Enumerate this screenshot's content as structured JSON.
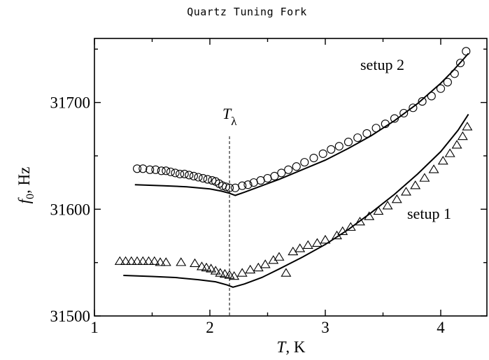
{
  "chart_data": {
    "type": "scatter",
    "title": "Quartz Tuning Fork",
    "xlabel": "T, K",
    "ylabel": "f0, Hz",
    "xlim": [
      1,
      4.4
    ],
    "ylim": [
      31500,
      31760
    ],
    "xticks": [
      "1",
      "2",
      "3",
      "4"
    ],
    "yticks": [
      "31500",
      "31600",
      "31700"
    ],
    "grid": false,
    "legend": "none",
    "annotations": {
      "t_lambda_x": 2.17,
      "t_lambda_label": "T",
      "t_lambda_subscript": "λ",
      "setup2_label": "setup 2",
      "setup1_label": "setup 1"
    },
    "series": [
      {
        "name": "setup 2",
        "marker": "circle",
        "points": [
          [
            1.37,
            31638
          ],
          [
            1.42,
            31638
          ],
          [
            1.48,
            31637
          ],
          [
            1.53,
            31637
          ],
          [
            1.58,
            31636
          ],
          [
            1.62,
            31636
          ],
          [
            1.66,
            31635
          ],
          [
            1.7,
            31634
          ],
          [
            1.74,
            31633
          ],
          [
            1.78,
            31633
          ],
          [
            1.82,
            31632
          ],
          [
            1.86,
            31631
          ],
          [
            1.9,
            31630
          ],
          [
            1.94,
            31629
          ],
          [
            1.98,
            31628
          ],
          [
            2.02,
            31627
          ],
          [
            2.05,
            31626
          ],
          [
            2.08,
            31624
          ],
          [
            2.11,
            31622
          ],
          [
            2.14,
            31621
          ],
          [
            2.17,
            31620
          ],
          [
            2.22,
            31620
          ],
          [
            2.28,
            31622
          ],
          [
            2.33,
            31623
          ],
          [
            2.38,
            31625
          ],
          [
            2.44,
            31627
          ],
          [
            2.5,
            31629
          ],
          [
            2.56,
            31631
          ],
          [
            2.62,
            31634
          ],
          [
            2.68,
            31637
          ],
          [
            2.75,
            31640
          ],
          [
            2.82,
            31644
          ],
          [
            2.9,
            31648
          ],
          [
            2.98,
            31652
          ],
          [
            3.05,
            31656
          ],
          [
            3.12,
            31659
          ],
          [
            3.2,
            31663
          ],
          [
            3.28,
            31667
          ],
          [
            3.36,
            31671
          ],
          [
            3.44,
            31676
          ],
          [
            3.52,
            31680
          ],
          [
            3.6,
            31685
          ],
          [
            3.68,
            31690
          ],
          [
            3.76,
            31695
          ],
          [
            3.84,
            31701
          ],
          [
            3.92,
            31706
          ],
          [
            4.0,
            31713
          ],
          [
            4.06,
            31719
          ],
          [
            4.12,
            31727
          ],
          [
            4.17,
            31737
          ],
          [
            4.22,
            31748
          ]
        ]
      },
      {
        "name": "setup 1",
        "marker": "triangle",
        "points": [
          [
            1.22,
            31551
          ],
          [
            1.27,
            31551
          ],
          [
            1.32,
            31551
          ],
          [
            1.37,
            31551
          ],
          [
            1.42,
            31551
          ],
          [
            1.47,
            31551
          ],
          [
            1.52,
            31551
          ],
          [
            1.57,
            31550
          ],
          [
            1.62,
            31550
          ],
          [
            1.75,
            31550
          ],
          [
            1.87,
            31549
          ],
          [
            1.93,
            31546
          ],
          [
            1.97,
            31545
          ],
          [
            2.01,
            31544
          ],
          [
            2.05,
            31542
          ],
          [
            2.09,
            31540
          ],
          [
            2.13,
            31539
          ],
          [
            2.17,
            31538
          ],
          [
            2.21,
            31537
          ],
          [
            2.28,
            31540
          ],
          [
            2.35,
            31543
          ],
          [
            2.42,
            31545
          ],
          [
            2.48,
            31548
          ],
          [
            2.55,
            31552
          ],
          [
            2.6,
            31555
          ],
          [
            2.66,
            31540
          ],
          [
            2.72,
            31560
          ],
          [
            2.78,
            31563
          ],
          [
            2.85,
            31566
          ],
          [
            2.93,
            31568
          ],
          [
            3.0,
            31571
          ],
          [
            3.1,
            31575
          ],
          [
            3.15,
            31579
          ],
          [
            3.22,
            31583
          ],
          [
            3.3,
            31588
          ],
          [
            3.38,
            31593
          ],
          [
            3.46,
            31598
          ],
          [
            3.54,
            31603
          ],
          [
            3.62,
            31609
          ],
          [
            3.7,
            31616
          ],
          [
            3.78,
            31622
          ],
          [
            3.86,
            31629
          ],
          [
            3.94,
            31637
          ],
          [
            4.02,
            31645
          ],
          [
            4.08,
            31652
          ],
          [
            4.14,
            31660
          ],
          [
            4.19,
            31668
          ],
          [
            4.23,
            31677
          ]
        ]
      },
      {
        "name": "",
        "type": "line",
        "points": [
          [
            1.35,
            31623
          ],
          [
            1.6,
            31622
          ],
          [
            1.8,
            31621
          ],
          [
            2.0,
            31619
          ],
          [
            2.1,
            31617
          ],
          [
            2.17,
            31615
          ],
          [
            2.22,
            31613
          ],
          [
            2.3,
            31616
          ],
          [
            2.45,
            31622
          ],
          [
            2.6,
            31628
          ],
          [
            2.8,
            31637
          ],
          [
            3.0,
            31646
          ],
          [
            3.2,
            31657
          ],
          [
            3.4,
            31669
          ],
          [
            3.6,
            31683
          ],
          [
            3.8,
            31699
          ],
          [
            4.0,
            31718
          ],
          [
            4.1,
            31729
          ],
          [
            4.2,
            31741
          ],
          [
            4.24,
            31746
          ]
        ]
      },
      {
        "name": "",
        "type": "line",
        "points": [
          [
            1.25,
            31538
          ],
          [
            1.5,
            31537
          ],
          [
            1.7,
            31536
          ],
          [
            1.9,
            31534
          ],
          [
            2.05,
            31532
          ],
          [
            2.15,
            31529
          ],
          [
            2.2,
            31527
          ],
          [
            2.3,
            31530
          ],
          [
            2.45,
            31536
          ],
          [
            2.6,
            31544
          ],
          [
            2.8,
            31555
          ],
          [
            3.0,
            31567
          ],
          [
            3.2,
            31581
          ],
          [
            3.4,
            31597
          ],
          [
            3.6,
            31614
          ],
          [
            3.8,
            31633
          ],
          [
            4.0,
            31654
          ],
          [
            4.15,
            31674
          ],
          [
            4.24,
            31689
          ]
        ]
      }
    ]
  }
}
